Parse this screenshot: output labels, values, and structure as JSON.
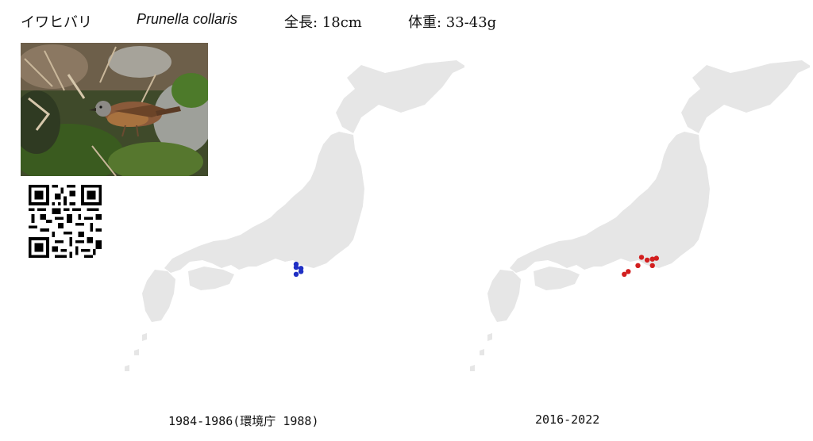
{
  "header": {
    "japanese_name": "イワヒバリ",
    "scientific_name": "Prunella collaris",
    "length": "全長: 18cm",
    "weight": "体重: 33-43g"
  },
  "colors": {
    "land": "#e6e6e6",
    "survey1_marker": "#1f2fc4",
    "survey2_marker": "#d21f1f"
  },
  "icons": {
    "photo": "bird-photo",
    "qr": "qr-code-icon"
  },
  "maps": [
    {
      "caption": "1984-1986(環境庁 1988)",
      "marker_color": "#1f2fc4",
      "points": [
        {
          "lon": 137.62,
          "lat": 36.48
        },
        {
          "lon": 137.62,
          "lat": 36.34
        },
        {
          "lon": 137.86,
          "lat": 36.3
        },
        {
          "lon": 137.86,
          "lat": 36.16
        },
        {
          "lon": 137.62,
          "lat": 36.04
        }
      ]
    },
    {
      "caption": "2016-2022",
      "marker_color": "#d21f1f",
      "points": [
        {
          "lon": 137.62,
          "lat": 36.78
        },
        {
          "lon": 137.9,
          "lat": 36.66
        },
        {
          "lon": 138.16,
          "lat": 36.7
        },
        {
          "lon": 138.36,
          "lat": 36.74
        },
        {
          "lon": 138.16,
          "lat": 36.42
        },
        {
          "lon": 137.44,
          "lat": 36.42
        },
        {
          "lon": 136.96,
          "lat": 36.16
        },
        {
          "lon": 136.76,
          "lat": 36.04
        }
      ]
    }
  ]
}
